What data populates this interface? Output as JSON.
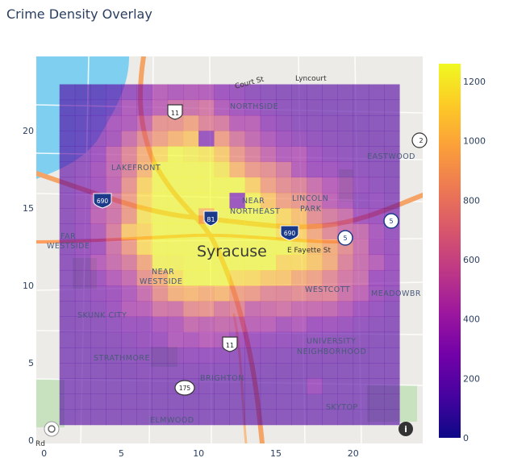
{
  "chart_data": {
    "type": "heatmap",
    "title": "Crime Density Overlay",
    "xlim": [
      -0.5,
      24.5
    ],
    "ylim": [
      -0.2,
      24.8
    ],
    "x_ticks": [
      0,
      5,
      10,
      15,
      20
    ],
    "y_ticks": [
      0,
      5,
      10,
      15,
      20
    ],
    "grid": {
      "x0": 1,
      "x1": 23,
      "y0": 1,
      "y1": 23,
      "cols": 22,
      "rows": 22
    },
    "colorbar": {
      "min": 0,
      "max": 1260,
      "ticks": [
        0,
        200,
        400,
        600,
        800,
        1000,
        1200
      ]
    },
    "hotspots": [
      {
        "x": 10.2,
        "y": 12.5,
        "peak": 1150,
        "sx": 3.2,
        "sy": 3.0
      },
      {
        "x": 13.0,
        "y": 14.5,
        "peak": 650,
        "sx": 3.6,
        "sy": 2.6
      },
      {
        "x": 8.5,
        "y": 16.5,
        "peak": 700,
        "sx": 2.5,
        "sy": 3.0
      },
      {
        "x": 17.5,
        "y": 11.5,
        "peak": 600,
        "sx": 2.6,
        "sy": 2.2
      },
      {
        "x": 9.5,
        "y": 19.5,
        "peak": 350,
        "sx": 2.5,
        "sy": 2.0
      }
    ],
    "base_value": 170,
    "overrides": [
      {
        "col": 7,
        "row": 10,
        "value": 1240
      },
      {
        "col": 9,
        "row": 13,
        "value": 980
      },
      {
        "col": 4,
        "row": 12,
        "value": 1050
      },
      {
        "col": 11,
        "row": 14,
        "value": 260
      },
      {
        "col": 9,
        "row": 18,
        "value": 250
      },
      {
        "col": 14,
        "row": 17,
        "value": 380
      },
      {
        "col": 16,
        "row": 2,
        "value": 300
      }
    ]
  },
  "map": {
    "city": "Syracuse",
    "labels": {
      "court_st": "Court St",
      "lyncourt": "Lyncourt",
      "northside": "NORTHSIDE",
      "eastwood": "EASTWOOD",
      "lakefront": "LAKEFRONT",
      "near_northeast_1": "NEAR",
      "near_northeast_2": "NORTHEAST",
      "lincoln_1": "LINCOLN",
      "lincoln_2": "PARK",
      "far_1": "FAR",
      "far_2": "WESTSIDE",
      "e_fayette": "E Fayette St",
      "near_westside_1": "NEAR",
      "near_westside_2": "WESTSIDE",
      "westcott": "WESTCOTT",
      "meadowbrook": "MEADOWBR",
      "skunk_city": "SKUNK CITY",
      "university_1": "UNIVERSITY",
      "university_2": "NEIGHBORHOOD",
      "strathmore": "STRATHMORE",
      "brighton": "BRIGHTON",
      "skytop": "SKYTOP",
      "elmwood": "ELMWOOD",
      "rd": "Rd"
    },
    "shields": {
      "i81": "81",
      "i690_w": "690",
      "i690_e": "690",
      "us11_n": "11",
      "us11_s": "11",
      "rt175": "175",
      "rt5_a": "5",
      "rt5_b": "5",
      "rt_edge": "2"
    }
  }
}
